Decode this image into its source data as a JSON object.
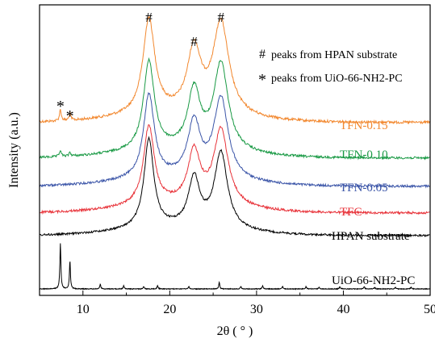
{
  "chart_data": {
    "type": "line",
    "xlabel": "2θ ( ° )",
    "ylabel": "Intensity (a.u.)",
    "xlim": [
      5,
      50
    ],
    "xticks": [
      10,
      20,
      30,
      40,
      50
    ],
    "grid": false,
    "y_scale": "arbitrary (stacked, offset)",
    "legend": {
      "position": "top-right",
      "entries": [
        {
          "marker": "#",
          "text": "peaks from HPAN substrate"
        },
        {
          "marker": "*",
          "text": "peaks from UiO-66-NH2-PC"
        }
      ]
    },
    "hpan_peaks": [
      17.6,
      22.8,
      25.9
    ],
    "uio_peaks": [
      7.4,
      8.5
    ],
    "series": [
      {
        "name": "TFN-0.15",
        "color": "#f2882f"
      },
      {
        "name": "TFN-0.10",
        "color": "#1a9a45"
      },
      {
        "name": "TFN-0.05",
        "color": "#3b55a8"
      },
      {
        "name": "TFC",
        "color": "#e8333a"
      },
      {
        "name": "HPAN substrate",
        "color": "#000000"
      },
      {
        "name": "UiO-66-NH2-PC",
        "color": "#000000"
      }
    ],
    "annotations": [
      {
        "text": "#",
        "x": 17.6,
        "series": "TFN-0.15"
      },
      {
        "text": "#",
        "x": 22.8,
        "series": "TFN-0.15"
      },
      {
        "text": "#",
        "x": 25.9,
        "series": "TFN-0.15"
      },
      {
        "text": "*",
        "x": 7.4,
        "series": "TFN-0.15"
      },
      {
        "text": "*",
        "x": 8.5,
        "series": "TFN-0.15"
      }
    ]
  }
}
